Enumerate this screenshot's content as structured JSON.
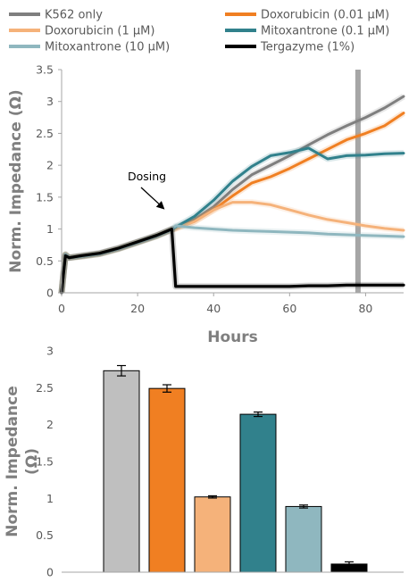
{
  "chart_data": [
    {
      "type": "line",
      "title": "",
      "xlabel": "Hours",
      "ylabel": "Norm. Impedance (Ω)",
      "xlim": [
        0,
        90
      ],
      "ylim": [
        0,
        3.5
      ],
      "xticks": [
        "0",
        "20",
        "40",
        "60",
        "80"
      ],
      "xtick_values": [
        0,
        20,
        40,
        60,
        80
      ],
      "yticks": [
        "0",
        "0.5",
        "1",
        "1.5",
        "2",
        "2.5",
        "3",
        "3.5"
      ],
      "ytick_values": [
        0,
        0.5,
        1,
        1.5,
        2,
        2.5,
        3,
        3.5
      ],
      "grid": false,
      "legend_position": "top",
      "annotation": {
        "text": "Dosing",
        "arrow_to": [
          29,
          1.0
        ]
      },
      "marker_line": {
        "x": 78,
        "color": "#a6a6a6"
      },
      "series": [
        {
          "name": "K562 only",
          "color": "#7f7f7f",
          "x": [
            0,
            0.5,
            1,
            2,
            5,
            10,
            15,
            20,
            25,
            29,
            30,
            35,
            40,
            45,
            50,
            55,
            60,
            65,
            70,
            75,
            80,
            85,
            90
          ],
          "y": [
            0,
            0.3,
            0.6,
            0.55,
            0.58,
            0.62,
            0.7,
            0.8,
            0.9,
            1.0,
            1.02,
            1.15,
            1.35,
            1.62,
            1.85,
            2.0,
            2.15,
            2.32,
            2.48,
            2.62,
            2.75,
            2.9,
            3.08
          ]
        },
        {
          "name": "Doxorubicin (0.01 µM)",
          "color": "#f07f22",
          "x": [
            0,
            0.5,
            1,
            2,
            5,
            10,
            15,
            20,
            25,
            29,
            30,
            35,
            40,
            45,
            50,
            55,
            60,
            65,
            70,
            75,
            80,
            85,
            90
          ],
          "y": [
            0,
            0.3,
            0.6,
            0.55,
            0.57,
            0.61,
            0.69,
            0.79,
            0.89,
            0.99,
            1.01,
            1.12,
            1.3,
            1.52,
            1.72,
            1.82,
            1.95,
            2.1,
            2.25,
            2.4,
            2.5,
            2.62,
            2.82
          ]
        },
        {
          "name": "Doxorubicin (1 µM)",
          "color": "#f5b27a",
          "x": [
            0,
            0.5,
            1,
            2,
            5,
            10,
            15,
            20,
            25,
            29,
            30,
            35,
            40,
            45,
            50,
            55,
            60,
            65,
            70,
            75,
            80,
            85,
            90
          ],
          "y": [
            0,
            0.3,
            0.6,
            0.55,
            0.57,
            0.61,
            0.69,
            0.79,
            0.89,
            0.99,
            1.01,
            1.12,
            1.3,
            1.42,
            1.42,
            1.38,
            1.3,
            1.22,
            1.15,
            1.1,
            1.05,
            1.01,
            0.98
          ]
        },
        {
          "name": "Mitoxantrone (0.1 µM)",
          "color": "#31818c",
          "x": [
            0,
            0.5,
            1,
            2,
            5,
            10,
            15,
            20,
            25,
            29,
            30,
            35,
            40,
            45,
            50,
            55,
            60,
            65,
            70,
            75,
            80,
            85,
            90
          ],
          "y": [
            0,
            0.3,
            0.6,
            0.55,
            0.57,
            0.61,
            0.69,
            0.79,
            0.89,
            0.99,
            1.03,
            1.2,
            1.45,
            1.75,
            1.98,
            2.15,
            2.2,
            2.27,
            2.1,
            2.15,
            2.16,
            2.18,
            2.19
          ]
        },
        {
          "name": "Mitoxantrone (10 µM)",
          "color": "#8fb7bf",
          "x": [
            0,
            0.5,
            1,
            2,
            5,
            10,
            15,
            20,
            25,
            29,
            30,
            35,
            40,
            45,
            50,
            55,
            60,
            65,
            70,
            75,
            80,
            85,
            90
          ],
          "y": [
            0,
            0.3,
            0.6,
            0.55,
            0.57,
            0.61,
            0.69,
            0.79,
            0.89,
            0.99,
            1.05,
            1.02,
            1.0,
            0.98,
            0.97,
            0.96,
            0.95,
            0.94,
            0.92,
            0.91,
            0.9,
            0.89,
            0.88
          ]
        },
        {
          "name": "Tergazyme (1%)",
          "color": "#000000",
          "x": [
            0,
            0.5,
            1,
            2,
            5,
            10,
            15,
            20,
            25,
            29,
            30,
            35,
            40,
            45,
            50,
            55,
            60,
            65,
            70,
            75,
            80,
            85,
            90
          ],
          "y": [
            0,
            0.3,
            0.58,
            0.55,
            0.58,
            0.62,
            0.7,
            0.8,
            0.9,
            1.0,
            0.1,
            0.1,
            0.1,
            0.1,
            0.1,
            0.1,
            0.1,
            0.11,
            0.11,
            0.12,
            0.12,
            0.12,
            0.12
          ]
        }
      ]
    },
    {
      "type": "bar",
      "title": "",
      "xlabel": "",
      "ylabel": "Norm. Impedance (Ω)",
      "ylim": [
        0,
        3
      ],
      "yticks": [
        "0",
        "0.5",
        "1",
        "1.5",
        "2",
        "2.5",
        "3"
      ],
      "ytick_values": [
        0,
        0.5,
        1,
        1.5,
        2,
        2.5,
        3
      ],
      "grid": false,
      "categories": [
        "K562 only",
        "Doxorubicin (0.01 µM)",
        "Doxorubicin (1 µM)",
        "Mitoxantrone (0.1 µM)",
        "Mitoxantrone (10 µM)",
        "Tergazyme (1%)"
      ],
      "colors": [
        "#bfbfbf",
        "#f07f22",
        "#f5b27a",
        "#31818c",
        "#8fb7bf",
        "#000000"
      ],
      "values": [
        2.73,
        2.49,
        1.02,
        2.14,
        0.89,
        0.11
      ],
      "errors": [
        0.07,
        0.05,
        0.015,
        0.03,
        0.02,
        0.03
      ]
    }
  ]
}
